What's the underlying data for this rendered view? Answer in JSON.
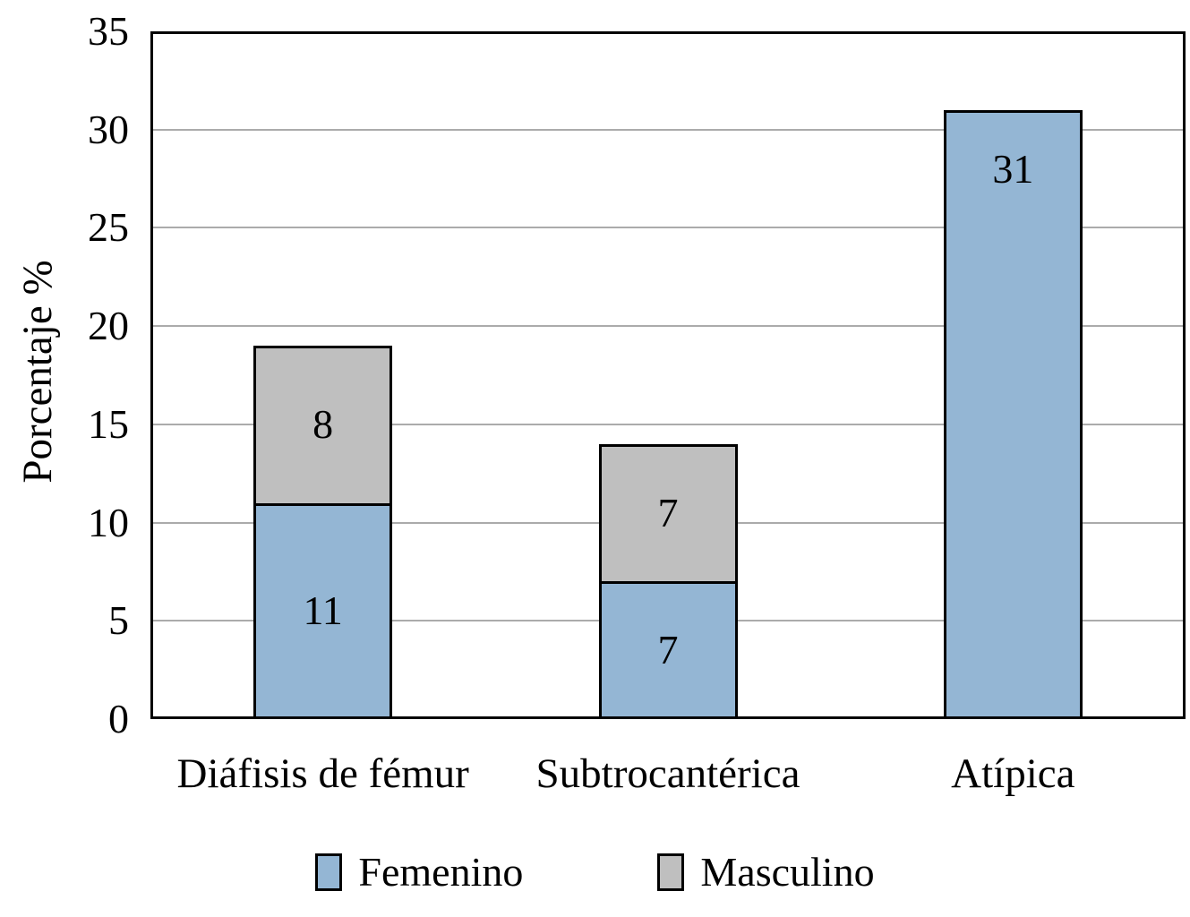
{
  "chart_data": {
    "type": "bar",
    "stacked": true,
    "title": "",
    "xlabel": "",
    "ylabel": "Porcentaje %",
    "ylim": [
      0,
      35
    ],
    "yticks": [
      0,
      5,
      10,
      15,
      20,
      25,
      30,
      35
    ],
    "grid": "horizontal",
    "legend_position": "bottom",
    "categories": [
      "Diáfisis de fémur",
      "Subtrocantérica",
      "Atípica"
    ],
    "series": [
      {
        "name": "Femenino",
        "color": "#94B6D4",
        "values": [
          11,
          7,
          31
        ]
      },
      {
        "name": "Masculino",
        "color": "#BFBFBF",
        "values": [
          8,
          7,
          0
        ]
      }
    ],
    "value_labels": [
      {
        "category_index": 0,
        "series_index": 0,
        "text": "11",
        "placement": "center"
      },
      {
        "category_index": 0,
        "series_index": 1,
        "text": "8",
        "placement": "center"
      },
      {
        "category_index": 1,
        "series_index": 0,
        "text": "7",
        "placement": "center"
      },
      {
        "category_index": 1,
        "series_index": 1,
        "text": "7",
        "placement": "center"
      },
      {
        "category_index": 2,
        "series_index": 0,
        "text": "31",
        "placement": "inside_top"
      }
    ]
  },
  "style": {
    "plot_border_color": "#000000",
    "bar_border_color": "#000000",
    "gridline_color": "#ABABAB",
    "text_color": "#000000",
    "background_color": "#FFFFFF"
  }
}
